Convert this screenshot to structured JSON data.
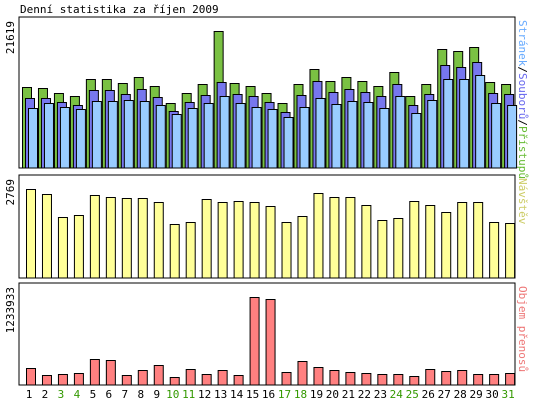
{
  "title": "Denní statistika za říjen 2009",
  "colors": {
    "page": "#ffffff",
    "panel_border": "#000000",
    "bar_outline": "#000000",
    "weekday_text": "#000000",
    "weekend_text": "#339900"
  },
  "chart_data": [
    {
      "type": "bar",
      "name": "hits-files-pages",
      "categories": [
        "1",
        "2",
        "3",
        "4",
        "5",
        "6",
        "7",
        "8",
        "9",
        "10",
        "11",
        "12",
        "13",
        "14",
        "15",
        "16",
        "17",
        "18",
        "19",
        "20",
        "21",
        "22",
        "23",
        "24",
        "25",
        "26",
        "27",
        "28",
        "29",
        "30",
        "31"
      ],
      "weekend_days": [
        "3",
        "4",
        "10",
        "11",
        "17",
        "18",
        "24",
        "25",
        "31"
      ],
      "ymax_label": "21619",
      "ymax": 21619,
      "side_label_parts": [
        {
          "text": "Stránek",
          "color": "#66aaff"
        },
        {
          "text": "/",
          "color": "#000000"
        },
        {
          "text": "Souborů",
          "color": "#6666ee"
        },
        {
          "text": "/",
          "color": "#000000"
        },
        {
          "text": "Přístupů",
          "color": "#66bb33"
        }
      ],
      "series": [
        {
          "name": "Přístupů",
          "color": "#7ac143",
          "values": [
            12800,
            12600,
            11800,
            11400,
            14100,
            14100,
            13400,
            14300,
            12900,
            10300,
            11900,
            13200,
            21619,
            13400,
            13000,
            11900,
            10200,
            13200,
            15700,
            13700,
            14300,
            13700,
            13000,
            15200,
            11300,
            13300,
            18700,
            18400,
            19100,
            13600,
            13300
          ]
        },
        {
          "name": "Souborů",
          "color": "#7777ee",
          "values": [
            11100,
            11000,
            10400,
            10000,
            12300,
            12300,
            11700,
            12500,
            11200,
            9000,
            10400,
            11500,
            13600,
            11700,
            11300,
            10400,
            8900,
            11500,
            13700,
            12000,
            12500,
            12000,
            11300,
            13300,
            9900,
            11600,
            16300,
            16000,
            16700,
            11900,
            11600
          ]
        },
        {
          "name": "Stránek",
          "color": "#99ccff",
          "values": [
            9400,
            10300,
            9700,
            9300,
            10600,
            10600,
            10800,
            10600,
            10000,
            8500,
            9500,
            10300,
            11300,
            10300,
            9700,
            9300,
            8000,
            9700,
            11100,
            10100,
            10600,
            10400,
            9400,
            11300,
            8700,
            10700,
            14100,
            14100,
            14700,
            10300,
            10000
          ]
        }
      ]
    },
    {
      "type": "bar",
      "name": "visits",
      "categories": [
        "1",
        "2",
        "3",
        "4",
        "5",
        "6",
        "7",
        "8",
        "9",
        "10",
        "11",
        "12",
        "13",
        "14",
        "15",
        "16",
        "17",
        "18",
        "19",
        "20",
        "21",
        "22",
        "23",
        "24",
        "25",
        "26",
        "27",
        "28",
        "29",
        "30",
        "31"
      ],
      "weekend_days": [
        "3",
        "4",
        "10",
        "11",
        "17",
        "18",
        "24",
        "25",
        "31"
      ],
      "ymax_label": "2769",
      "ymax": 2769,
      "side_label": "Návštěv",
      "side_label_color": "#cccc66",
      "series": [
        {
          "name": "Návštěv",
          "color": "#ffff99",
          "values": [
            2769,
            2610,
            1890,
            1950,
            2570,
            2510,
            2500,
            2500,
            2370,
            1690,
            1730,
            2470,
            2350,
            2390,
            2370,
            2250,
            1730,
            1930,
            2640,
            2510,
            2510,
            2280,
            1820,
            1860,
            2390,
            2280,
            2050,
            2370,
            2350,
            1730,
            1700
          ]
        }
      ]
    },
    {
      "type": "bar",
      "name": "volume",
      "categories": [
        "1",
        "2",
        "3",
        "4",
        "5",
        "6",
        "7",
        "8",
        "9",
        "10",
        "11",
        "12",
        "13",
        "14",
        "15",
        "16",
        "17",
        "18",
        "19",
        "20",
        "21",
        "22",
        "23",
        "24",
        "25",
        "26",
        "27",
        "28",
        "29",
        "30",
        "31"
      ],
      "weekend_days": [
        "3",
        "4",
        "10",
        "11",
        "17",
        "18",
        "24",
        "25",
        "31"
      ],
      "ymax_label": "1233933",
      "ymax": 1233933,
      "side_label": "Objem přenosů",
      "side_label_color": "#ee7777",
      "series": [
        {
          "name": "Objem přenosů",
          "color": "#ff8080",
          "values": [
            240000,
            140000,
            150000,
            170000,
            370000,
            350000,
            140000,
            210000,
            280000,
            110000,
            230000,
            160000,
            210000,
            140000,
            1233933,
            1200000,
            180000,
            340000,
            250000,
            210000,
            180000,
            170000,
            160000,
            150000,
            120000,
            220000,
            190000,
            210000,
            160000,
            150000,
            170000
          ]
        }
      ]
    }
  ]
}
